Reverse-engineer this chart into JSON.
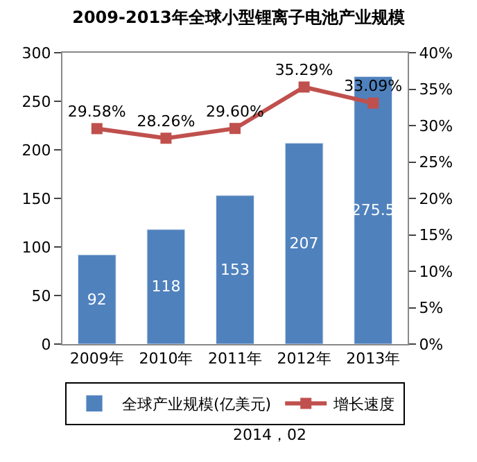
{
  "chart_data": {
    "type": "bar",
    "title": "2009-2013年全球小型锂离子电池产业规模",
    "categories": [
      "2009年",
      "2010年",
      "2011年",
      "2012年",
      "2013年"
    ],
    "series": [
      {
        "name": "全球产业规模(亿美元)",
        "color": "#4f81bd",
        "values": [
          92,
          118,
          153,
          207,
          275.5
        ],
        "value_labels": [
          "92",
          "118",
          "153",
          "207",
          "275.5"
        ]
      },
      {
        "name": "增长速度",
        "type": "line",
        "axis": "y2",
        "color": "#c0504d",
        "marker": "square",
        "values": [
          29.58,
          28.26,
          29.6,
          35.29,
          33.09
        ],
        "value_labels": [
          "29.58%",
          "28.26%",
          "29.60%",
          "35.29%",
          "33.09%"
        ]
      }
    ],
    "ylim": [
      0,
      300
    ],
    "yticks": [
      0,
      50,
      100,
      150,
      200,
      250,
      300
    ],
    "y2lim": [
      0,
      40
    ],
    "y2ticks": [
      {
        "value": 0,
        "label": "0%"
      },
      {
        "value": 5,
        "label": "5%"
      },
      {
        "value": 10,
        "label": "10%"
      },
      {
        "value": 15,
        "label": "15%"
      },
      {
        "value": 20,
        "label": "20%"
      },
      {
        "value": 25,
        "label": "25%"
      },
      {
        "value": 30,
        "label": "30%"
      },
      {
        "value": 35,
        "label": "35%"
      },
      {
        "value": 40,
        "label": "40%"
      }
    ],
    "legend": "bottom",
    "annotations": [
      "2014，02"
    ]
  }
}
